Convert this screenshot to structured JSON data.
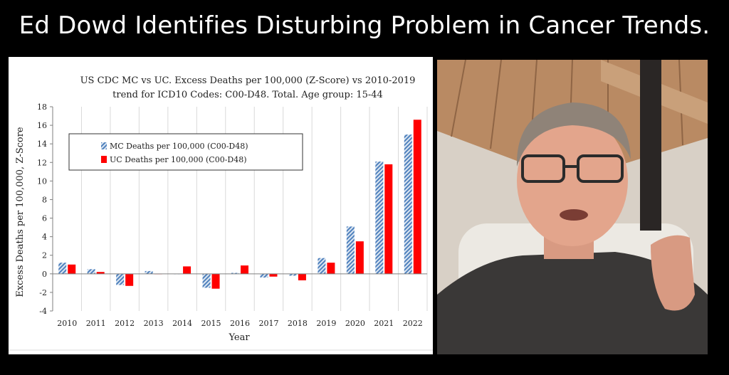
{
  "headline": "Ed Dowd Identifies Disturbing Problem in Cancer Trends.",
  "colors": {
    "mc_series": "#4f81bd",
    "uc_series": "#ff0000",
    "background": "#000000",
    "chart_background": "#ffffff"
  },
  "chart_data": {
    "type": "bar",
    "title_line1": "US CDC MC vs UC. Excess Deaths per 100,000 (Z-Score) vs 2010-2019",
    "title_line2": "trend for ICD10 Codes: C00-D48. Total. Age group: 15-44",
    "xlabel": "Year",
    "ylabel": "Excess Deaths per 100,000, Z-Score",
    "ylim": [
      -4,
      18
    ],
    "yticks": [
      -4,
      -2,
      0,
      2,
      4,
      6,
      8,
      10,
      12,
      14,
      16,
      18
    ],
    "grid": "vertical",
    "legend_position": "top-left",
    "categories": [
      "2010",
      "2011",
      "2012",
      "2013",
      "2014",
      "2015",
      "2016",
      "2017",
      "2018",
      "2019",
      "2020",
      "2021",
      "2022"
    ],
    "series": [
      {
        "name": "MC Deaths per 100,000 (C00-D48)",
        "pattern": "hatched",
        "values": [
          1.2,
          0.5,
          -1.2,
          0.3,
          0.0,
          -1.5,
          0.1,
          -0.4,
          -0.2,
          1.7,
          5.1,
          12.1,
          15.0
        ]
      },
      {
        "name": "UC Deaths per 100,000 (C00-D48)",
        "pattern": "solid",
        "values": [
          1.0,
          0.2,
          -1.3,
          0.0,
          0.8,
          -1.6,
          0.9,
          -0.3,
          -0.7,
          1.2,
          3.5,
          11.8,
          16.6
        ]
      }
    ]
  }
}
